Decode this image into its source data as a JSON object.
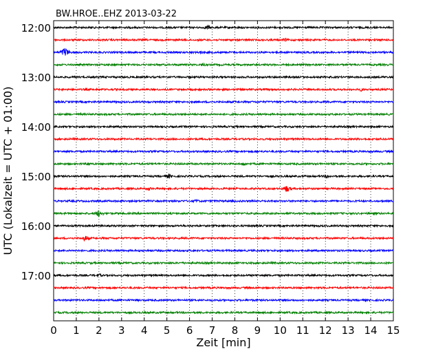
{
  "chart_data": {
    "type": "line",
    "title": "BW.HROE..EHZ 2013-03-22",
    "xlabel": "Zeit  [min]",
    "ylabel": "UTC (Lokalzeit = UTC + 01:00)",
    "xlim": [
      0,
      15
    ],
    "x_ticks": [
      "0",
      "1",
      "2",
      "3",
      "4",
      "5",
      "6",
      "7",
      "8",
      "9",
      "10",
      "11",
      "12",
      "13",
      "14",
      "15"
    ],
    "y_ticks": [
      {
        "label": "12:00",
        "trace": 0
      },
      {
        "label": "13:00",
        "trace": 4
      },
      {
        "label": "14:00",
        "trace": 8
      },
      {
        "label": "15:00",
        "trace": 12
      },
      {
        "label": "16:00",
        "trace": 16
      },
      {
        "label": "17:00",
        "trace": 20
      }
    ],
    "grid": "vertical dotted at each minute",
    "trace_colors": [
      "#000000",
      "#ff0000",
      "#0000ff",
      "#008000"
    ],
    "traces": [
      {
        "start": "12:00",
        "events": [
          {
            "min": 6.8,
            "amp": 4
          }
        ]
      },
      {
        "start": "12:15",
        "events": [
          {
            "min": 10.2,
            "amp": 3
          }
        ]
      },
      {
        "start": "12:30",
        "events": [
          {
            "min": 0.5,
            "amp": 8
          },
          {
            "min": 6.5,
            "amp": 3
          }
        ]
      },
      {
        "start": "12:45",
        "events": [
          {
            "min": 6.6,
            "amp": 3
          }
        ]
      },
      {
        "start": "13:00",
        "events": []
      },
      {
        "start": "13:15",
        "events": [
          {
            "min": 13.6,
            "amp": 3
          }
        ]
      },
      {
        "start": "13:30",
        "events": []
      },
      {
        "start": "13:45",
        "events": [
          {
            "min": 1.2,
            "amp": 2
          }
        ]
      },
      {
        "start": "14:00",
        "events": []
      },
      {
        "start": "14:15",
        "events": []
      },
      {
        "start": "14:30",
        "events": []
      },
      {
        "start": "14:45",
        "events": [
          {
            "min": 1.5,
            "amp": 3
          },
          {
            "min": 8.4,
            "amp": 3
          }
        ]
      },
      {
        "start": "15:00",
        "events": [
          {
            "min": 5.1,
            "amp": 4
          },
          {
            "min": 12.1,
            "amp": 4
          }
        ]
      },
      {
        "start": "15:15",
        "events": [
          {
            "min": 10.3,
            "amp": 6
          },
          {
            "min": 4.2,
            "amp": 3
          }
        ]
      },
      {
        "start": "15:30",
        "events": [
          {
            "min": 6.3,
            "amp": 3
          }
        ]
      },
      {
        "start": "15:45",
        "events": [
          {
            "min": 2.0,
            "amp": 6
          }
        ]
      },
      {
        "start": "16:00",
        "events": []
      },
      {
        "start": "16:15",
        "events": [
          {
            "min": 1.4,
            "amp": 5
          }
        ]
      },
      {
        "start": "16:30",
        "events": []
      },
      {
        "start": "16:45",
        "events": []
      },
      {
        "start": "17:00",
        "events": [
          {
            "min": 2.0,
            "amp": 3
          }
        ]
      },
      {
        "start": "17:15",
        "events": []
      },
      {
        "start": "17:30",
        "events": []
      },
      {
        "start": "17:45",
        "events": []
      }
    ]
  }
}
